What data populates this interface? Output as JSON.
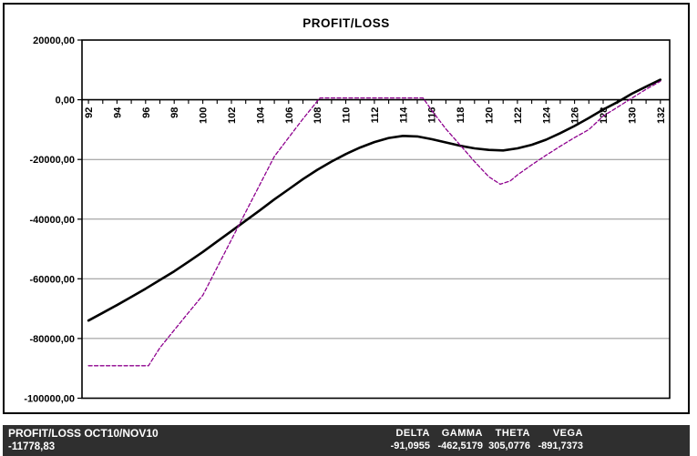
{
  "title": "PROFIT/LOSS",
  "status_bar": {
    "left_title": "PROFIT/LOSS OCT10/NOV10",
    "left_value": "-11778,83",
    "greeks": [
      {
        "label": "DELTA",
        "value": "-91,0955"
      },
      {
        "label": "GAMMA",
        "value": "-462,5179"
      },
      {
        "label": "THETA",
        "value": "305,0776"
      },
      {
        "label": "VEGA",
        "value": "-891,7373"
      }
    ]
  },
  "colors": {
    "solid_line": "#000000",
    "dashed_line": "#8e008e",
    "grid": "#909090",
    "axis": "#000000",
    "bar_bg": "#2f2f2f",
    "bar_text": "#ffffff"
  },
  "chart_data": {
    "type": "line",
    "title": "PROFIT/LOSS",
    "xlabel": "",
    "ylabel": "",
    "grid": "horizontal",
    "legend": "none",
    "x_axis": {
      "min": 91.55,
      "max": 132.65,
      "first_tick": 92,
      "last_tick": 132,
      "tick_interval": 1,
      "label_interval": 2,
      "labels": [
        "92",
        "94",
        "96",
        "98",
        "100",
        "102",
        "104",
        "106",
        "108",
        "110",
        "112",
        "114",
        "116",
        "118",
        "120",
        "122",
        "124",
        "126",
        "128",
        "130",
        "132"
      ]
    },
    "y_axis": {
      "min": -100000,
      "max": 20000,
      "ticks": [
        {
          "value": 20000,
          "label": "20000,00",
          "grid": false
        },
        {
          "value": 0,
          "label": "0,00",
          "grid": false
        },
        {
          "value": -20000,
          "label": "-20000,00",
          "grid": true
        },
        {
          "value": -40000,
          "label": "-40000,00",
          "grid": true
        },
        {
          "value": -60000,
          "label": "-60000,00",
          "grid": true
        },
        {
          "value": -80000,
          "label": "-80000,00",
          "grid": true
        },
        {
          "value": -100000,
          "label": "-100000,00",
          "grid": false
        }
      ]
    },
    "series": [
      {
        "name": "profit-loss-current",
        "style": "solid",
        "color": "#000000",
        "width": 2.6,
        "dash": "",
        "points": [
          [
            92,
            -74000
          ],
          [
            93,
            -71400
          ],
          [
            94,
            -68800
          ],
          [
            95,
            -66100
          ],
          [
            96,
            -63300
          ],
          [
            97,
            -60400
          ],
          [
            98,
            -57500
          ],
          [
            99,
            -54300
          ],
          [
            100,
            -51000
          ],
          [
            101,
            -47500
          ],
          [
            102,
            -44000
          ],
          [
            103,
            -40500
          ],
          [
            104,
            -37000
          ],
          [
            105,
            -33400
          ],
          [
            106,
            -30000
          ],
          [
            107,
            -26600
          ],
          [
            108,
            -23500
          ],
          [
            109,
            -20700
          ],
          [
            110,
            -18200
          ],
          [
            111,
            -16000
          ],
          [
            112,
            -14200
          ],
          [
            113,
            -12800
          ],
          [
            114,
            -12100
          ],
          [
            115,
            -12300
          ],
          [
            116,
            -13200
          ],
          [
            117,
            -14300
          ],
          [
            118,
            -15400
          ],
          [
            119,
            -16300
          ],
          [
            120,
            -16800
          ],
          [
            121,
            -17000
          ],
          [
            122,
            -16300
          ],
          [
            123,
            -15100
          ],
          [
            124,
            -13400
          ],
          [
            125,
            -11200
          ],
          [
            126,
            -8800
          ],
          [
            127,
            -6100
          ],
          [
            128,
            -3300
          ],
          [
            129,
            -800
          ],
          [
            130,
            2000
          ],
          [
            131,
            4400
          ],
          [
            132,
            6700
          ]
        ]
      },
      {
        "name": "profit-loss-expiration",
        "style": "dashed",
        "color": "#8e008e",
        "width": 1.3,
        "dash": "4 2.5",
        "points": [
          [
            92,
            -89100
          ],
          [
            96.2,
            -89100
          ],
          [
            97,
            -83100
          ],
          [
            98,
            -77200
          ],
          [
            99,
            -71300
          ],
          [
            100,
            -65500
          ],
          [
            101,
            -56200
          ],
          [
            102,
            -46900
          ],
          [
            103,
            -37600
          ],
          [
            104,
            -28300
          ],
          [
            105,
            -19000
          ],
          [
            106,
            -12700
          ],
          [
            107,
            -6400
          ],
          [
            108,
            -500
          ],
          [
            108.2,
            600
          ],
          [
            115.4,
            600
          ],
          [
            116,
            -3500
          ],
          [
            117,
            -9800
          ],
          [
            118,
            -15200
          ],
          [
            119,
            -20700
          ],
          [
            120,
            -25800
          ],
          [
            120.8,
            -28300
          ],
          [
            121.5,
            -27200
          ],
          [
            122,
            -25200
          ],
          [
            123,
            -21800
          ],
          [
            124,
            -18600
          ],
          [
            125,
            -15600
          ],
          [
            126,
            -12700
          ],
          [
            127,
            -10000
          ],
          [
            128,
            -5500
          ],
          [
            129,
            -2500
          ],
          [
            130,
            500
          ],
          [
            131,
            3500
          ],
          [
            132,
            6200
          ]
        ]
      }
    ]
  }
}
